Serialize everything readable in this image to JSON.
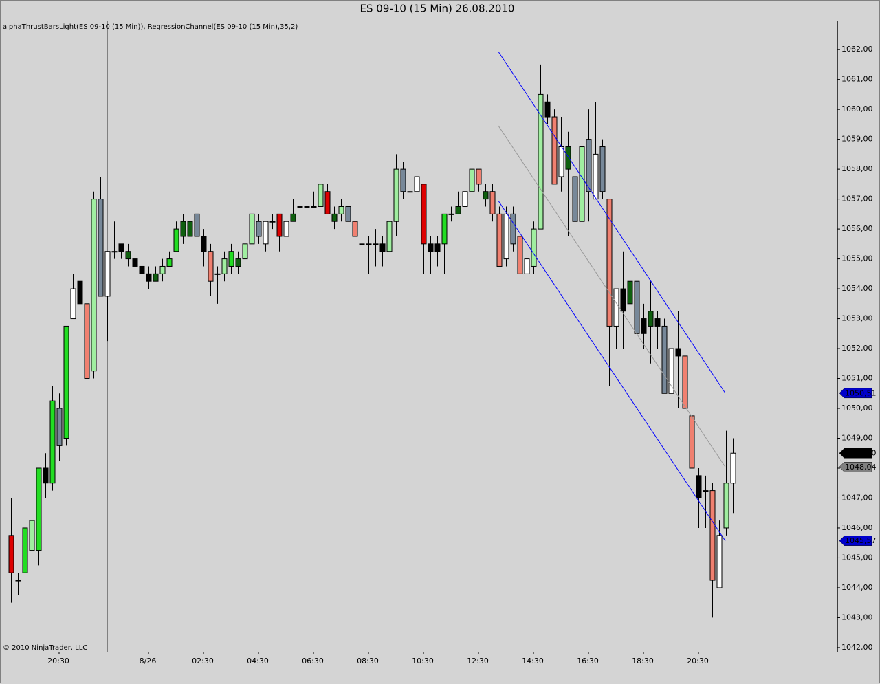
{
  "chart_data": {
    "type": "candlestick",
    "title": "ES 09-10 (15 Min)  26.08.2010",
    "indicator_label": "alphaThrustBarsLight(ES 09-10 (15 Min)), RegressionChannel(ES 09-10 (15 Min),35,2)",
    "copyright": "© 2010 NinjaTrader, LLC",
    "categories": [
      null,
      null,
      null,
      null,
      null,
      null,
      null,
      "20:30",
      null,
      null,
      null,
      null,
      null,
      null,
      null,
      null,
      null,
      null,
      null,
      null,
      "8/26",
      null,
      null,
      null,
      null,
      null,
      null,
      null,
      "02:30",
      null,
      null,
      null,
      null,
      null,
      null,
      null,
      "04:30",
      null,
      null,
      null,
      null,
      null,
      null,
      null,
      "06:30",
      null,
      null,
      null,
      null,
      null,
      null,
      null,
      "08:30",
      null,
      null,
      null,
      null,
      null,
      null,
      null,
      "10:30",
      null,
      null,
      null,
      null,
      null,
      null,
      null,
      "12:30",
      null,
      null,
      null,
      null,
      null,
      null,
      null,
      "14:30",
      null,
      null,
      null,
      null,
      null,
      null,
      null,
      "16:30",
      null,
      null,
      null,
      null,
      null,
      null,
      null,
      "18:30",
      null,
      null,
      null,
      null,
      null,
      null,
      null,
      "20:30",
      null,
      null,
      null,
      null,
      null
    ],
    "open": [
      1045.75,
      1044.25,
      1044.5,
      1045.25,
      1045.25,
      1048,
      1047.5,
      1050,
      1049,
      1053,
      1054.25,
      1053.5,
      1051.25,
      1057,
      1053.75,
      1055.25,
      1055.5,
      1055,
      1055,
      1054.75,
      1054.5,
      1054.25,
      1054.5,
      1054.75,
      1055.25,
      1055.75,
      1055.75,
      1056.5,
      1055.75,
      1055.25,
      1054.5,
      1054.5,
      1054.75,
      1054.75,
      1055,
      1055.5,
      1056.25,
      1055.5,
      1056.25,
      1056.5,
      1055.75,
      1056.25,
      1056.75,
      1056.75,
      1056.75,
      1056.75,
      1057.25,
      1056.25,
      1056.5,
      1056.75,
      1056.25,
      1055.5,
      1055.5,
      1055.5,
      1055.5,
      1055.25,
      1056.25,
      1058,
      1057.25,
      1057.25,
      1057.5,
      1055.5,
      1055.5,
      1055.5,
      1056.5,
      1056.5,
      1056.75,
      1057.25,
      1058,
      1057,
      1057.25,
      1056.5,
      1055,
      1056.5,
      1055.75,
      1054.5,
      1054.75,
      1056,
      1060.25,
      1059.75,
      1057.75,
      1058,
      1057.75,
      1056.25,
      1059,
      1057,
      1058.75,
      1057,
      1052.75,
      1054,
      1053.5,
      1054.25,
      1053,
      1052.75,
      1053,
      1052.75,
      1050.5,
      1052,
      1051.75,
      1049.75,
      1047.75,
      1047.25,
      1047.25,
      1044,
      1046,
      1047.5
    ],
    "high": [
      1047,
      1044.5,
      1046.5,
      1046.5,
      1048,
      1048.5,
      1050.75,
      1050.5,
      1052.75,
      1054.5,
      1055,
      1054,
      1057.25,
      1057.75,
      1055.25,
      1056.25,
      1055.5,
      1055.5,
      1055,
      1055,
      1054.75,
      1054.75,
      1055,
      1055.25,
      1056.25,
      1056.5,
      1056.5,
      1056.5,
      1056,
      1055.5,
      1054.75,
      1055.25,
      1055.5,
      1055.25,
      1055.5,
      1056.5,
      1056.5,
      1056.25,
      1056.5,
      1056.5,
      1056.25,
      1057,
      1057.25,
      1057,
      1057.25,
      1057.5,
      1057.5,
      1056.75,
      1057,
      1056.75,
      1056.25,
      1056,
      1055.75,
      1056,
      1055.75,
      1056.25,
      1058.5,
      1058.25,
      1057.5,
      1058.25,
      1057.5,
      1055.75,
      1055.75,
      1056.5,
      1056.75,
      1057.25,
      1057.25,
      1058.75,
      1058,
      1057.5,
      1057.5,
      1056.75,
      1056.75,
      1056.75,
      1055.75,
      1055,
      1056.25,
      1061.5,
      1060.5,
      1060,
      1059.75,
      1059.25,
      1058,
      1060,
      1060,
      1060.25,
      1059,
      1057,
      1054,
      1055.25,
      1054.5,
      1054.5,
      1053.5,
      1054.25,
      1053.25,
      1053,
      1052,
      1053.25,
      1052.5,
      1049.75,
      1048,
      1047.75,
      1047.5,
      1046.25,
      1049.25,
      1049
    ],
    "low": [
      1043.5,
      1043.75,
      1043.75,
      1045,
      1044.75,
      1047,
      1047.25,
      1048.25,
      1048.75,
      1053,
      1053.5,
      1050.5,
      1051,
      1053.75,
      1052.25,
      1055,
      1055,
      1054.75,
      1054.5,
      1054.25,
      1054,
      1054.25,
      1054.25,
      1054.75,
      1055.25,
      1055.5,
      1055.75,
      1055.5,
      1054.75,
      1053.75,
      1053.5,
      1054.25,
      1054.5,
      1054.5,
      1054.75,
      1055.25,
      1055.5,
      1055.25,
      1056,
      1055.25,
      1055.75,
      1056.25,
      1056.75,
      1056.75,
      1056.75,
      1056.75,
      1056.5,
      1056,
      1056.25,
      1056.25,
      1055.5,
      1055.25,
      1054.5,
      1054.75,
      1054.75,
      1055.25,
      1055.75,
      1057,
      1056.75,
      1056.75,
      1054.5,
      1054.5,
      1054.75,
      1054.5,
      1056.25,
      1056.5,
      1056.75,
      1057.25,
      1057.25,
      1056.75,
      1056.25,
      1054.75,
      1054.75,
      1055.25,
      1054.5,
      1053.5,
      1054.5,
      1056,
      1059.5,
      1057.5,
      1057.25,
      1055.75,
      1053.25,
      1056.25,
      1056.25,
      1057,
      1057,
      1050.75,
      1052,
      1052,
      1050.25,
      1052.5,
      1052,
      1051.5,
      1052,
      1050.5,
      1050.5,
      1050,
      1049.75,
      1046.75,
      1046,
      1046,
      1043,
      1044,
      1045.75,
      1046.5
    ],
    "close": [
      1044.5,
      1044.25,
      1046,
      1046.25,
      1048,
      1047.5,
      1050.25,
      1048.75,
      1052.75,
      1054,
      1053.5,
      1051,
      1057,
      1053.75,
      1055.25,
      1055.25,
      1055.25,
      1055.25,
      1054.75,
      1054.5,
      1054.25,
      1054.5,
      1054.75,
      1055,
      1056,
      1056.25,
      1056.25,
      1055.75,
      1055.25,
      1054.25,
      1054.5,
      1055,
      1055.25,
      1055,
      1055.5,
      1056.5,
      1055.75,
      1056.25,
      1056.25,
      1055.75,
      1056.25,
      1056.5,
      1056.75,
      1056.75,
      1056.75,
      1057.5,
      1056.5,
      1056.5,
      1056.75,
      1056.25,
      1055.75,
      1055.5,
      1055.5,
      1055.5,
      1055.25,
      1056.25,
      1058,
      1057.25,
      1057.25,
      1057.75,
      1055.5,
      1055.25,
      1055.25,
      1056.5,
      1056.5,
      1056.75,
      1057.25,
      1058,
      1057.5,
      1057.25,
      1056.5,
      1054.75,
      1056.5,
      1055.5,
      1054.5,
      1055,
      1056,
      1060.5,
      1059.75,
      1057.5,
      1058.75,
      1058.75,
      1056.25,
      1058.75,
      1057.25,
      1058.5,
      1057.25,
      1052.75,
      1054,
      1053.25,
      1054.25,
      1052.5,
      1052.5,
      1053.25,
      1052.75,
      1050.5,
      1052,
      1051.75,
      1050,
      1048,
      1047,
      1047.25,
      1044.25,
      1045.75,
      1047.5,
      1048.5
    ],
    "colors": [
      "#dd0000",
      "#000000",
      "#22dd22",
      "#a0eea0",
      "#22dd22",
      "#000000",
      "#22dd22",
      "#778899",
      "#22dd22",
      "#ffffff",
      "#000000",
      "#f08070",
      "#a0eea0",
      "#778899",
      "#ffffff",
      "#000000",
      "#000000",
      "#0f5f0f",
      "#000000",
      "#000000",
      "#000000",
      "#0f5f0f",
      "#a0eea0",
      "#22dd22",
      "#22dd22",
      "#0f5f0f",
      "#0f5f0f",
      "#778899",
      "#000000",
      "#f08070",
      "#000000",
      "#a0eea0",
      "#22dd22",
      "#0f5f0f",
      "#a0eea0",
      "#a0eea0",
      "#778899",
      "#ffffff",
      "#000000",
      "#dd0000",
      "#ffffff",
      "#0f5f0f",
      "#000000",
      "#000000",
      "#000000",
      "#a0eea0",
      "#dd0000",
      "#0f5f0f",
      "#a0eea0",
      "#778899",
      "#f08070",
      "#000000",
      "#000000",
      "#000000",
      "#000000",
      "#a0eea0",
      "#a0eea0",
      "#778899",
      "#000000",
      "#ffffff",
      "#dd0000",
      "#000000",
      "#000000",
      "#22dd22",
      "#000000",
      "#0f5f0f",
      "#ffffff",
      "#a0eea0",
      "#f08070",
      "#0f5f0f",
      "#f08070",
      "#f08070",
      "#ffffff",
      "#778899",
      "#f08070",
      "#ffffff",
      "#a0eea0",
      "#a0eea0",
      "#000000",
      "#f08070",
      "#ffffff",
      "#0f5f0f",
      "#778899",
      "#a0eea0",
      "#778899",
      "#ffffff",
      "#778899",
      "#f08070",
      "#ffffff",
      "#000000",
      "#0f5f0f",
      "#778899",
      "#000000",
      "#0f5f0f",
      "#000000",
      "#778899",
      "#ffffff",
      "#000000",
      "#f08070",
      "#f08070",
      "#000000",
      "#000000",
      "#f08070",
      "#ffffff",
      "#a0eea0",
      "#ffffff"
    ],
    "channel": {
      "start": 70.9,
      "end": 103.9,
      "lines": [
        {
          "color": "#0000ff",
          "values": [
            1061.93,
            1050.51
          ]
        },
        {
          "color": "#999999",
          "values": [
            1059.45,
            1048.04
          ]
        },
        {
          "color": "#0000ff",
          "values": [
            1056.94,
            1045.57
          ]
        }
      ]
    },
    "price_markers": {
      "values": [
        1050.51,
        1048.5,
        1048.04,
        1045.57
      ],
      "value_labels": [
        "1050,51",
        "1048,50",
        "1048,04",
        "1045,57"
      ],
      "colors": [
        "#0000cc",
        "#000000",
        "#808080",
        "#0000cc"
      ]
    },
    "ylim": [
      1041.86,
      1062.97
    ],
    "yticks": [
      {
        "value": 1042,
        "label": "1042,00"
      },
      {
        "value": 1043,
        "label": "1043,00"
      },
      {
        "value": 1044,
        "label": "1044,00"
      },
      {
        "value": 1045,
        "label": "1045,00"
      },
      {
        "value": 1046,
        "label": "1046,00"
      },
      {
        "value": 1047,
        "label": "1047,00"
      },
      {
        "value": 1048,
        "label": "1048,00"
      },
      {
        "value": 1049,
        "label": "1049,00"
      },
      {
        "value": 1050,
        "label": "1050,00"
      },
      {
        "value": 1051,
        "label": "1051,00"
      },
      {
        "value": 1052,
        "label": "1052,00"
      },
      {
        "value": 1053,
        "label": "1053,00"
      },
      {
        "value": 1054,
        "label": "1054,00"
      },
      {
        "value": 1055,
        "label": "1055,00"
      },
      {
        "value": 1056,
        "label": "1056,00"
      },
      {
        "value": 1057,
        "label": "1057,00"
      },
      {
        "value": 1058,
        "label": "1058,00"
      },
      {
        "value": 1059,
        "label": "1059,00"
      },
      {
        "value": 1060,
        "label": "1060,00"
      },
      {
        "value": 1061,
        "label": "1061,00"
      },
      {
        "value": 1062,
        "label": "1062,00"
      }
    ]
  }
}
